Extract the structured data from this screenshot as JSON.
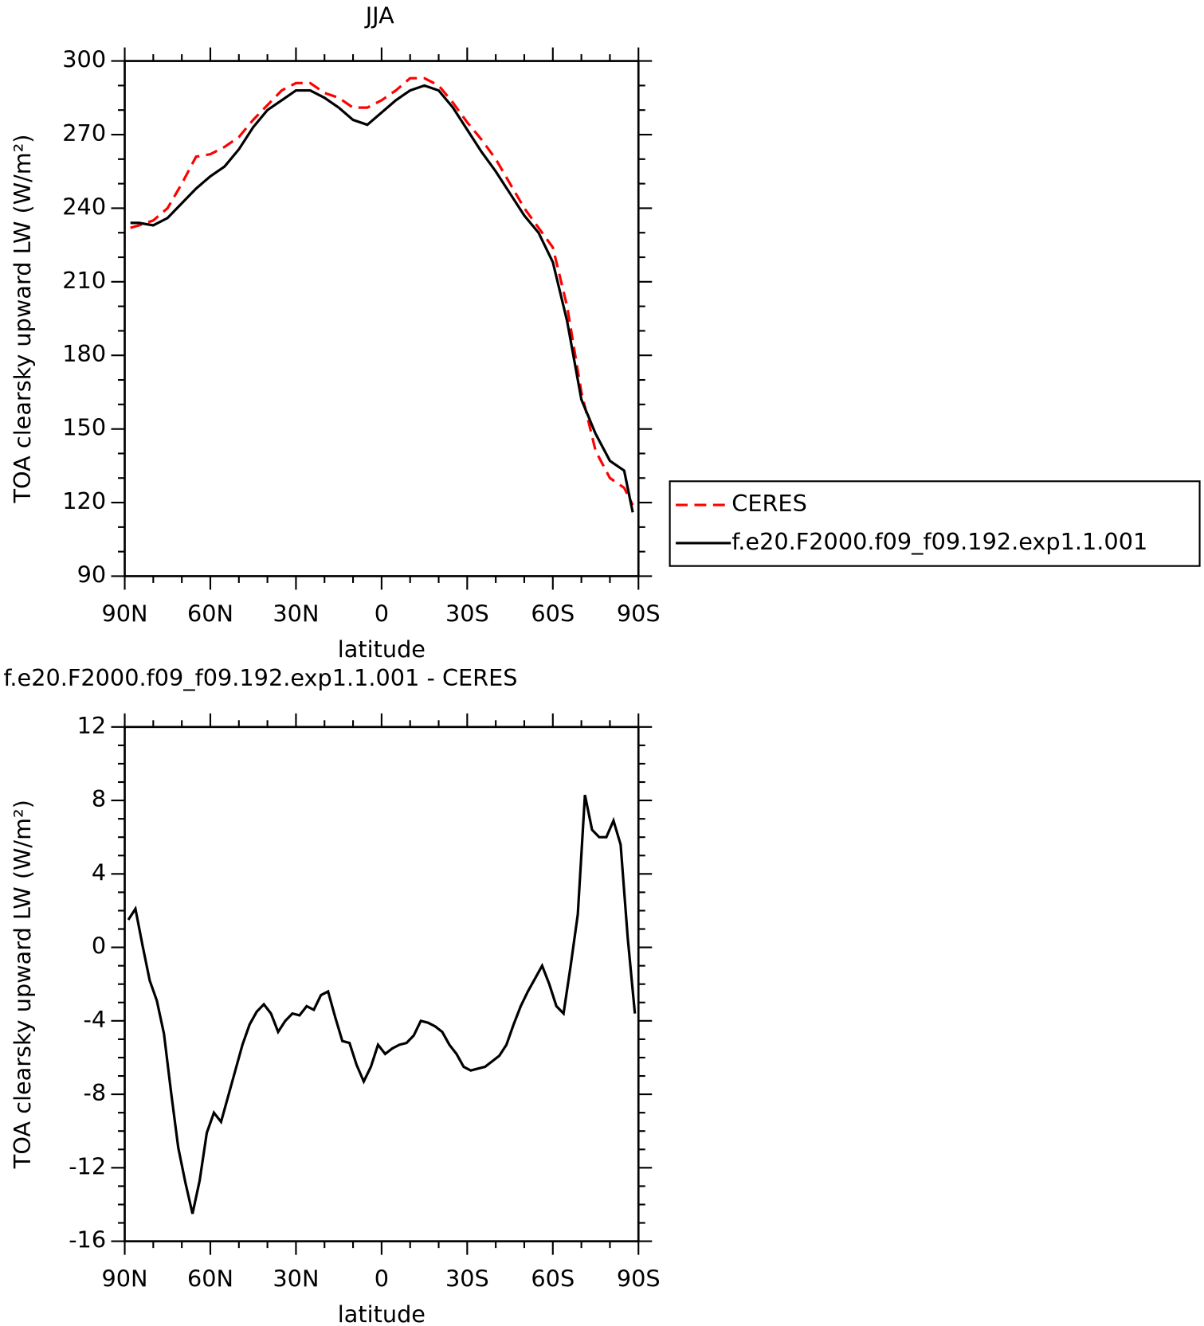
{
  "chart_data": [
    {
      "type": "line",
      "title": "JJA",
      "xlabel": "latitude",
      "ylabel": "TOA clearsky upward LW (W/m²)",
      "x": [
        88,
        85,
        80,
        75,
        70,
        65,
        60,
        55,
        50,
        45,
        40,
        35,
        30,
        25,
        20,
        15,
        10,
        5,
        0,
        -5,
        -10,
        -15,
        -20,
        -25,
        -30,
        -35,
        -40,
        -45,
        -50,
        -55,
        -60,
        -65,
        -70,
        -75,
        -80,
        -85,
        -88
      ],
      "series": [
        {
          "name": "CERES",
          "color": "#ff0000",
          "dash": true,
          "values": [
            232,
            233,
            235,
            240,
            250,
            261,
            262,
            265,
            269,
            276,
            282,
            288,
            291,
            291,
            287,
            285,
            281,
            281,
            284,
            288,
            293,
            293,
            290,
            283,
            275,
            268,
            260,
            250,
            240,
            232,
            224,
            200,
            165,
            141,
            130,
            126,
            119
          ]
        },
        {
          "name": "f.e20.F2000.f09_f09.192.exp1.1.001",
          "color": "#000000",
          "dash": false,
          "values": [
            234,
            234,
            233,
            236,
            242,
            248,
            253,
            257,
            264,
            273,
            280,
            284,
            288,
            288,
            285,
            281,
            276,
            274,
            279,
            284,
            288,
            290,
            288,
            281,
            272,
            263,
            255,
            246,
            237,
            230,
            218,
            194,
            162,
            148,
            137,
            133,
            116
          ]
        }
      ],
      "xlim": [
        90,
        -90
      ],
      "xticks": [
        {
          "value": 90,
          "label": "90N"
        },
        {
          "value": 60,
          "label": "60N"
        },
        {
          "value": 30,
          "label": "30N"
        },
        0,
        {
          "value": -30,
          "label": "30S"
        },
        {
          "value": -60,
          "label": "60S"
        },
        {
          "value": -90,
          "label": "90S"
        }
      ],
      "xminorticks": [
        80,
        70,
        50,
        40,
        20,
        10,
        -10,
        -20,
        -40,
        -50,
        -70,
        -80
      ],
      "ylim": [
        90,
        300
      ],
      "yticks": [
        90,
        120,
        150,
        180,
        210,
        240,
        270,
        300
      ],
      "yminorticks": [
        100,
        110,
        130,
        140,
        160,
        170,
        190,
        200,
        220,
        230,
        250,
        260,
        280,
        290
      ],
      "legend": "right"
    },
    {
      "type": "line",
      "title": "f.e20.F2000.f09_f09.192.exp1.1.001 - CERES",
      "xlabel": "latitude",
      "ylabel": "TOA clearsky upward LW (W/m²)",
      "x": [
        88.75,
        86.25,
        83.75,
        81.25,
        78.75,
        76.25,
        73.75,
        71.25,
        68.75,
        66.25,
        63.75,
        61.25,
        58.75,
        56.25,
        53.75,
        51.25,
        48.75,
        46.25,
        43.75,
        41.25,
        38.75,
        36.25,
        33.75,
        31.25,
        28.75,
        26.25,
        23.75,
        21.25,
        18.75,
        16.25,
        13.75,
        11.25,
        8.75,
        6.25,
        3.75,
        1.25,
        -1.25,
        -3.75,
        -6.25,
        -8.75,
        -11.25,
        -13.75,
        -16.25,
        -18.75,
        -21.25,
        -23.75,
        -26.25,
        -28.75,
        -31.25,
        -33.75,
        -36.25,
        -38.75,
        -41.25,
        -43.75,
        -46.25,
        -48.75,
        -51.25,
        -53.75,
        -56.25,
        -58.75,
        -61.25,
        -63.75,
        -66.25,
        -68.75,
        -71.25,
        -73.75,
        -76.25,
        -78.75,
        -81.25,
        -83.75,
        -86.25,
        -88.75
      ],
      "series": [
        {
          "name": "f.e20.F2000.f09_f09.192.exp1.1.001 - CERES",
          "color": "#000000",
          "dash": false,
          "values": [
            1.5,
            2.1,
            0.1,
            -1.8,
            -2.9,
            -4.7,
            -7.9,
            -10.9,
            -12.8,
            -14.5,
            -12.7,
            -10.1,
            -9.0,
            -9.5,
            -8.1,
            -6.7,
            -5.3,
            -4.2,
            -3.5,
            -3.1,
            -3.6,
            -4.6,
            -4.0,
            -3.6,
            -3.7,
            -3.2,
            -3.4,
            -2.6,
            -2.4,
            -3.8,
            -5.1,
            -5.2,
            -6.4,
            -7.3,
            -6.5,
            -5.3,
            -5.8,
            -5.5,
            -5.3,
            -5.2,
            -4.8,
            -4.0,
            -4.1,
            -4.3,
            -4.6,
            -5.3,
            -5.8,
            -6.5,
            -6.7,
            -6.6,
            -6.5,
            -6.2,
            -5.9,
            -5.3,
            -4.2,
            -3.2,
            -2.4,
            -1.7,
            -1.0,
            -2.0,
            -3.2,
            -3.6,
            -1.0,
            1.8,
            8.3,
            6.4,
            6.0,
            6.0,
            6.9,
            5.6,
            0.5,
            -3.6
          ]
        }
      ],
      "xlim": [
        90,
        -90
      ],
      "xticks": [
        {
          "value": 90,
          "label": "90N"
        },
        {
          "value": 60,
          "label": "60N"
        },
        {
          "value": 30,
          "label": "30N"
        },
        0,
        {
          "value": -30,
          "label": "30S"
        },
        {
          "value": -60,
          "label": "60S"
        },
        {
          "value": -90,
          "label": "90S"
        }
      ],
      "xminorticks": [
        80,
        70,
        50,
        40,
        20,
        10,
        -10,
        -20,
        -40,
        -50,
        -70,
        -80
      ],
      "ylim": [
        -16,
        12
      ],
      "yticks": [
        -16,
        -12,
        -8,
        -4,
        0,
        4,
        8,
        12
      ],
      "yminorticks": [
        -15,
        -14,
        -13,
        -11,
        -10,
        -9,
        -7,
        -6,
        -5,
        -3,
        -2,
        -1,
        1,
        2,
        3,
        5,
        6,
        7,
        9,
        10,
        11
      ]
    }
  ]
}
